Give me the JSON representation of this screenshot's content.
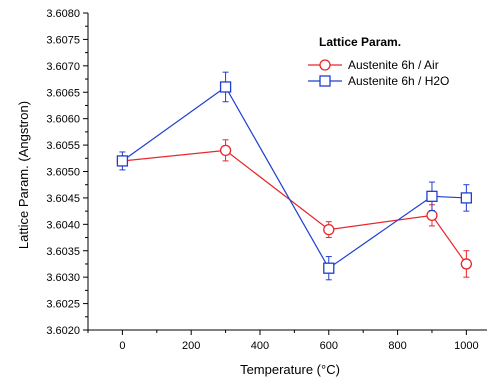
{
  "chart_data": {
    "type": "line",
    "xlabel": "Temperature (°C)",
    "ylabel": "Lattice Param. (Angstron)",
    "xlim": [
      -100,
      1060
    ],
    "ylim": [
      3.602,
      3.608
    ],
    "x_ticks": [
      0,
      200,
      400,
      600,
      800,
      1000
    ],
    "x_tick_labels": [
      "0",
      "200",
      "400",
      "600",
      "800",
      "1000"
    ],
    "y_ticks": [
      3.602,
      3.6025,
      3.603,
      3.6035,
      3.604,
      3.6045,
      3.605,
      3.6055,
      3.606,
      3.6065,
      3.607,
      3.6075,
      3.608
    ],
    "y_tick_labels": [
      "3.6020",
      "3.6025",
      "3.6030",
      "3.6035",
      "3.6040",
      "3.6045",
      "3.6050",
      "3.6055",
      "3.6060",
      "3.6065",
      "3.6070",
      "3.6075",
      "3.6080"
    ],
    "grid": false,
    "legend": {
      "title": "Lattice Param.",
      "position": "top-right"
    },
    "series": [
      {
        "name": "Austenite 6h / Air",
        "color": "#e8262b",
        "marker": "circle",
        "x": [
          0,
          300,
          600,
          900,
          1000
        ],
        "y": [
          3.6052,
          3.6054,
          3.6039,
          3.60417,
          3.60325
        ],
        "err": [
          0.0,
          0.0002,
          0.00015,
          0.0002,
          0.00025
        ]
      },
      {
        "name": "Austenite 6h / H2O",
        "color": "#1f3fd1",
        "marker": "square",
        "x": [
          0,
          300,
          600,
          900,
          1000
        ],
        "y": [
          3.6052,
          3.6066,
          3.60317,
          3.60453,
          3.6045
        ],
        "err": [
          0.00017,
          0.00028,
          0.00022,
          0.00027,
          0.00025
        ]
      }
    ]
  }
}
